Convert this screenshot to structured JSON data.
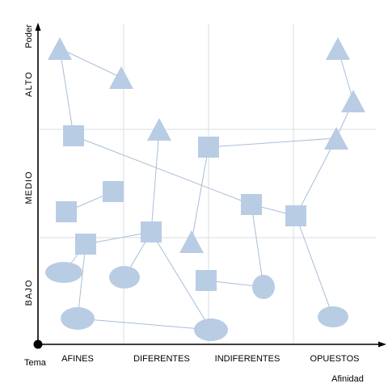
{
  "axes": {
    "y_title": "Poder",
    "x_title": "Afinidad",
    "origin_label": "Tema",
    "y_levels": [
      "BAJO",
      "MEDIO",
      "ALTO"
    ],
    "x_categories": [
      "AFINES",
      "DIFERENTES",
      "INDIFERENTES",
      "OPUESTOS"
    ]
  },
  "colors": {
    "shape_fill": "#b8cce4",
    "connector": "#a9bdd6",
    "grid": "#d9dde3",
    "axis": "#000000"
  },
  "nodes": [
    {
      "id": "t1",
      "shape": "triangle"
    },
    {
      "id": "t2",
      "shape": "triangle"
    },
    {
      "id": "t3",
      "shape": "triangle"
    },
    {
      "id": "t4",
      "shape": "triangle"
    },
    {
      "id": "t5",
      "shape": "triangle"
    },
    {
      "id": "t6",
      "shape": "triangle"
    },
    {
      "id": "t7",
      "shape": "triangle"
    },
    {
      "id": "s1",
      "shape": "square"
    },
    {
      "id": "s2",
      "shape": "square"
    },
    {
      "id": "s3",
      "shape": "square"
    },
    {
      "id": "s4",
      "shape": "square"
    },
    {
      "id": "s5",
      "shape": "square"
    },
    {
      "id": "s6",
      "shape": "square"
    },
    {
      "id": "s7",
      "shape": "square"
    },
    {
      "id": "s8",
      "shape": "square"
    },
    {
      "id": "s9",
      "shape": "square"
    },
    {
      "id": "e1",
      "shape": "ellipse"
    },
    {
      "id": "e2",
      "shape": "ellipse"
    },
    {
      "id": "e3",
      "shape": "ellipse"
    },
    {
      "id": "e4",
      "shape": "ellipse"
    },
    {
      "id": "e5",
      "shape": "ellipse"
    },
    {
      "id": "e6",
      "shape": "ellipse"
    }
  ],
  "connections": [
    [
      "t1",
      "t2"
    ],
    [
      "t1",
      "s1"
    ],
    [
      "s1",
      "s8"
    ],
    [
      "s8",
      "s9"
    ],
    [
      "s9",
      "t7"
    ],
    [
      "t7",
      "t6"
    ],
    [
      "t6",
      "t5"
    ],
    [
      "s2",
      "t7"
    ],
    [
      "s3",
      "s4"
    ],
    [
      "s5",
      "e1"
    ],
    [
      "s5",
      "e4"
    ],
    [
      "s5",
      "s6"
    ],
    [
      "s6",
      "t3"
    ],
    [
      "s6",
      "e2"
    ],
    [
      "s6",
      "e5"
    ],
    [
      "t4",
      "s2"
    ],
    [
      "s8",
      "e6"
    ],
    [
      "s7",
      "e6"
    ],
    [
      "s9",
      "e3"
    ],
    [
      "e4",
      "e5"
    ]
  ]
}
